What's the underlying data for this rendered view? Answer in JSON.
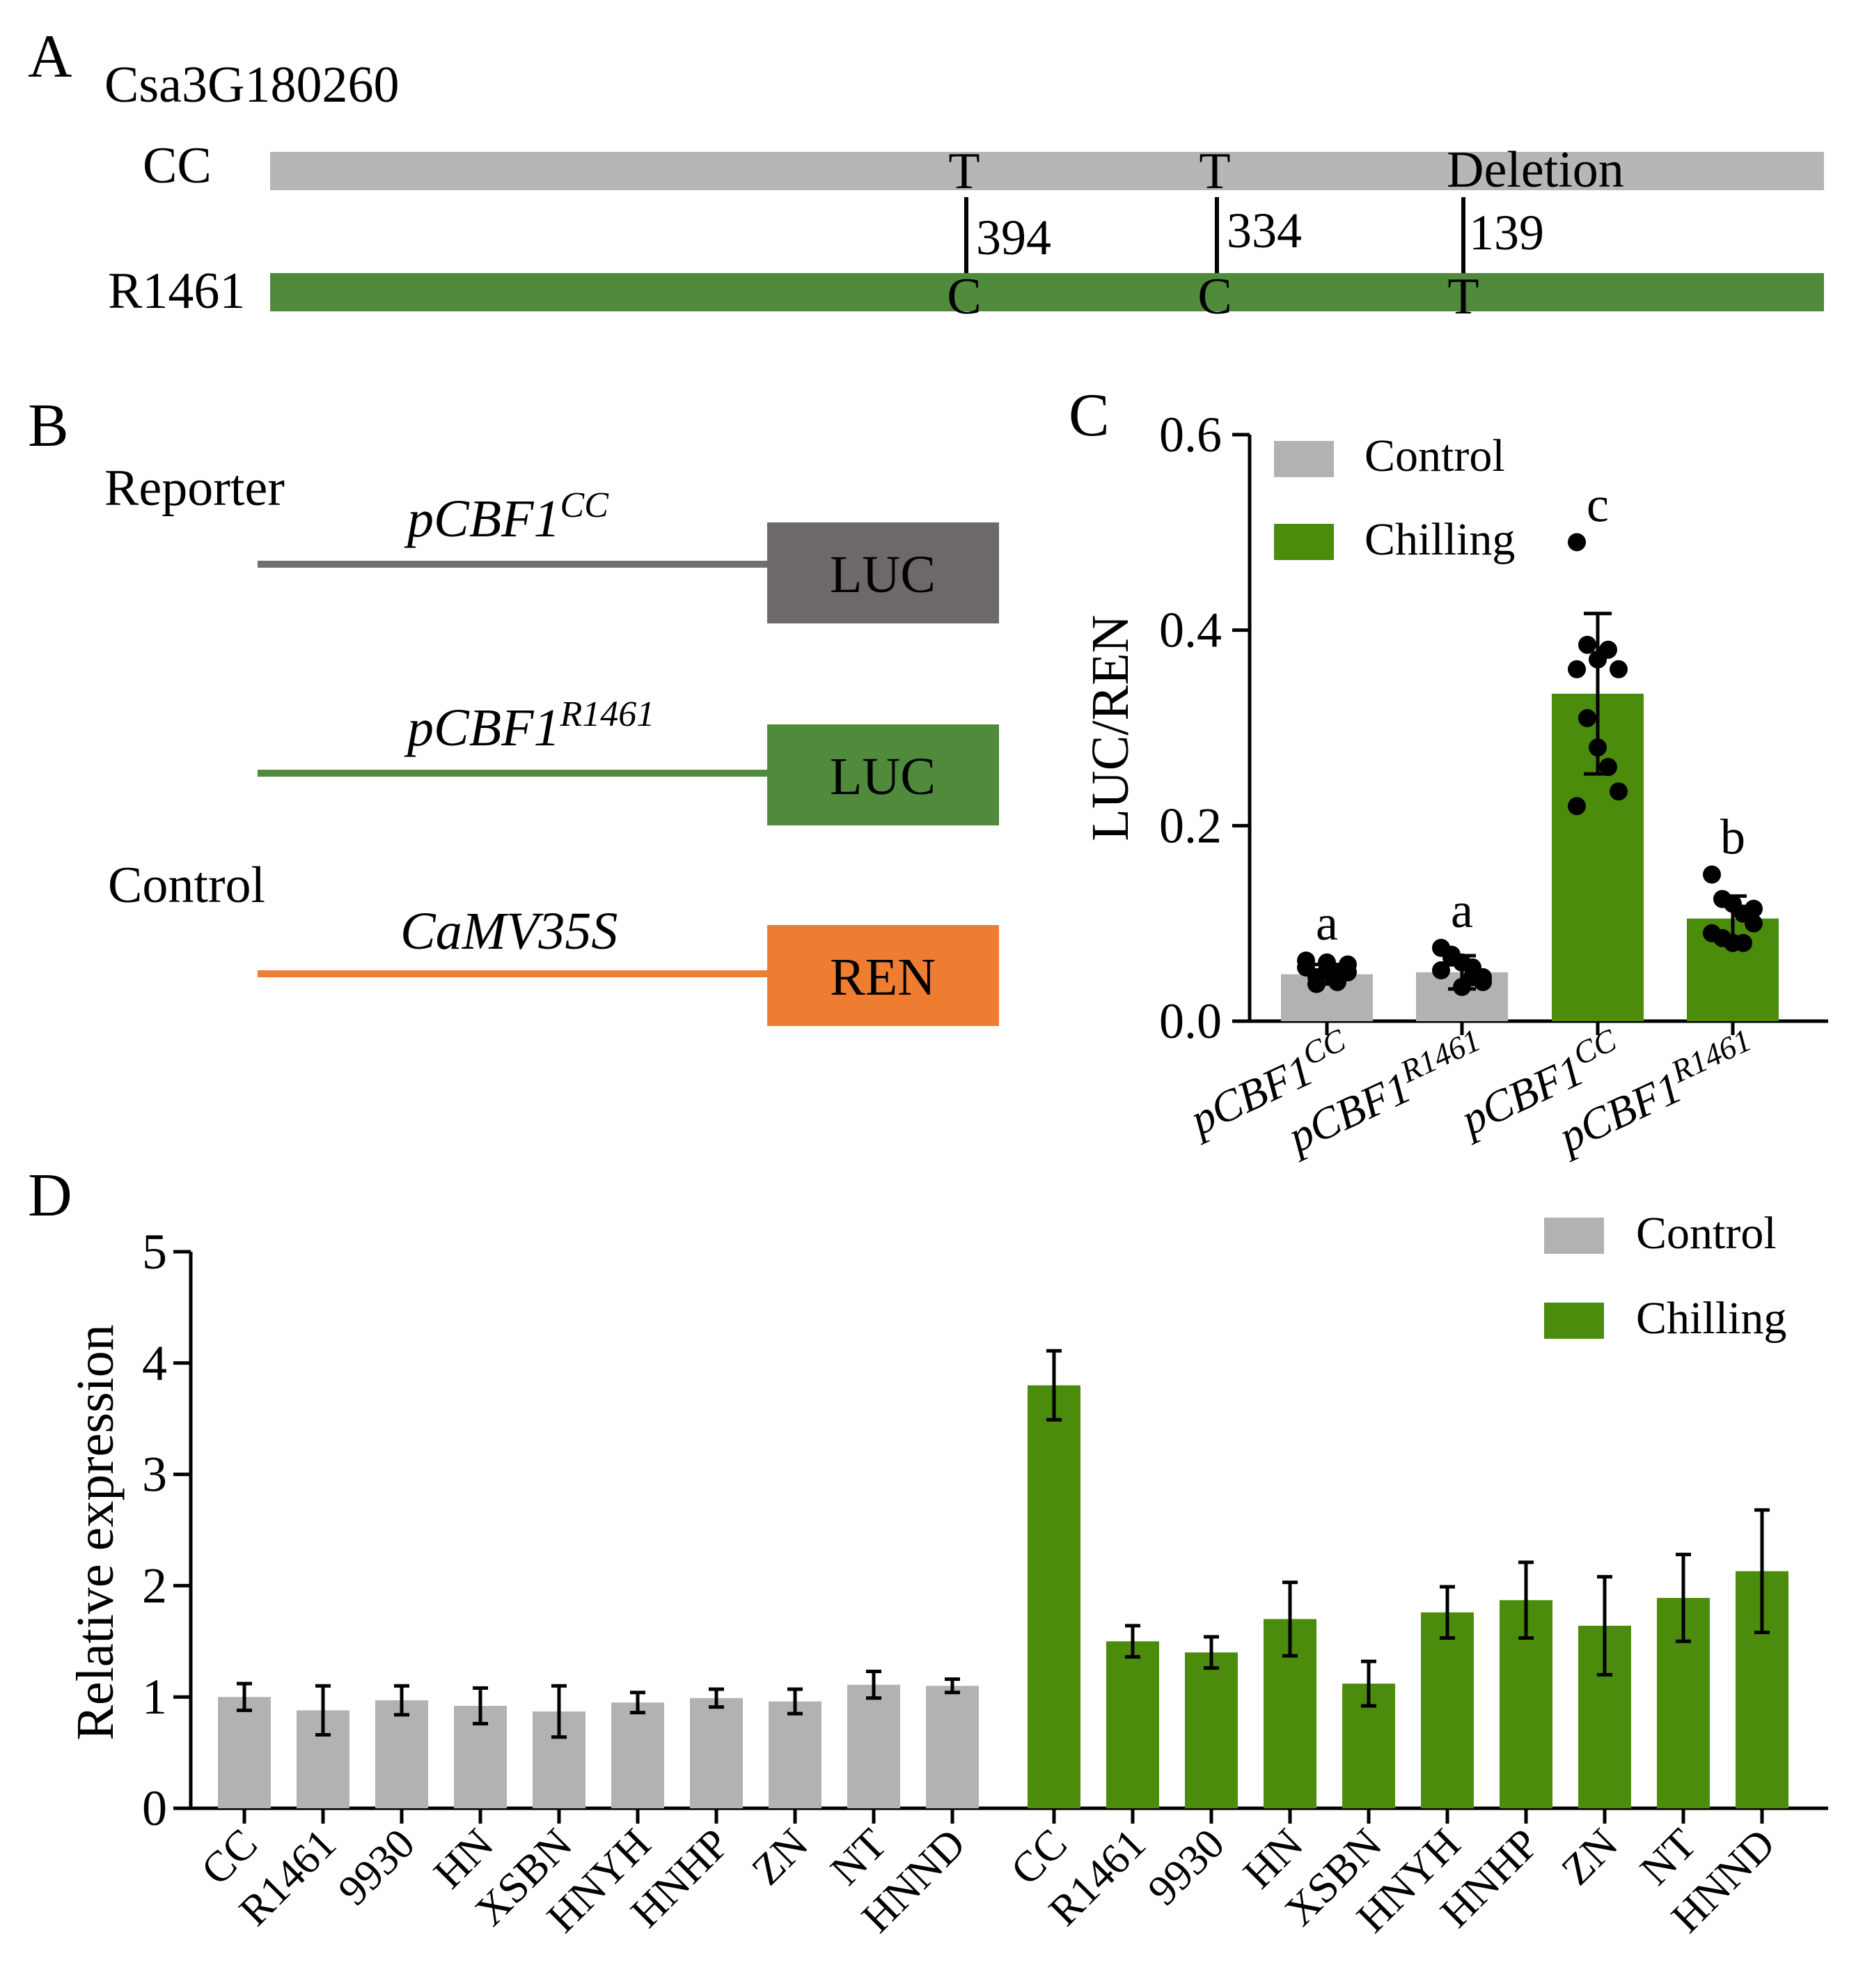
{
  "colors": {
    "control_gray": "#b2b2b2",
    "chilling_green": "#4c8c0c",
    "cc_line": "#b7b5b5",
    "r1461_line": "#4f8b3b",
    "reporter_dark": "#6d6869",
    "reporter_line_gray": "#6f6f6f",
    "ren_orange": "#ee7d32",
    "axis": "#000000"
  },
  "panel_a": {
    "label": "A",
    "gene": "Csa3G180260",
    "rows": [
      {
        "name": "CC",
        "bases": [
          "T",
          "T",
          "Deletion"
        ]
      },
      {
        "name": "R1461",
        "bases": [
          "C",
          "C",
          "T"
        ]
      }
    ],
    "positions": [
      "394",
      "334",
      "139"
    ]
  },
  "panel_b": {
    "label": "B",
    "reporter_label": "Reporter",
    "control_label": "Control",
    "constructs": [
      {
        "promoter_base": "pCBF1",
        "promoter_sup": "CC",
        "box": "LUC",
        "color": "#6d6869",
        "line": "#6f6f6f"
      },
      {
        "promoter_base": "pCBF1",
        "promoter_sup": "R1461",
        "box": "LUC",
        "color": "#4f8b3b",
        "line": "#4f8b3b"
      },
      {
        "promoter_base": "CaMV35S",
        "promoter_sup": "",
        "box": "REN",
        "color": "#ee7d32",
        "line": "#ee7d32"
      }
    ]
  },
  "chart_data": [
    {
      "panel": "C",
      "type": "bar",
      "ylabel": "LUC/REN",
      "xlabel": "",
      "ylim": [
        0,
        0.6
      ],
      "yticks": [
        "0.0",
        "0.2",
        "0.4",
        "0.6"
      ],
      "legend": [
        "Control",
        "Chilling"
      ],
      "legend_position": "top-left",
      "categories": [
        {
          "base": "pCBF1",
          "sup": "CC"
        },
        {
          "base": "pCBF1",
          "sup": "R1461"
        },
        {
          "base": "pCBF1",
          "sup": "CC"
        },
        {
          "base": "pCBF1",
          "sup": "R1461"
        }
      ],
      "bars": [
        {
          "group": "Control",
          "value": 0.048,
          "err": 0.01,
          "letter": "a",
          "points": [
            0.055,
            0.045,
            0.06,
            0.04,
            0.05,
            0.062,
            0.038,
            0.052,
            0.047,
            0.058
          ]
        },
        {
          "group": "Control",
          "value": 0.05,
          "err": 0.017,
          "letter": "a",
          "points": [
            0.075,
            0.068,
            0.06,
            0.045,
            0.04,
            0.052,
            0.065,
            0.035,
            0.055,
            0.045
          ]
        },
        {
          "group": "Chilling",
          "value": 0.335,
          "err": 0.082,
          "letter": "c",
          "points": [
            0.49,
            0.385,
            0.37,
            0.38,
            0.36,
            0.36,
            0.31,
            0.28,
            0.26,
            0.235,
            0.22
          ]
        },
        {
          "group": "Chilling",
          "value": 0.105,
          "err": 0.023,
          "letter": "b",
          "points": [
            0.15,
            0.125,
            0.12,
            0.11,
            0.1,
            0.09,
            0.085,
            0.08,
            0.08,
            0.115
          ]
        }
      ]
    },
    {
      "panel": "D",
      "type": "bar",
      "ylabel": "Relative expression",
      "xlabel": "",
      "ylim": [
        0,
        5
      ],
      "yticks": [
        "0",
        "1",
        "2",
        "3",
        "4",
        "5"
      ],
      "legend": [
        "Control",
        "Chilling"
      ],
      "legend_position": "top-right",
      "categories": [
        "CC",
        "R1461",
        "9930",
        "HN",
        "XSBN",
        "HNYH",
        "HNHP",
        "ZN",
        "NT",
        "HNND"
      ],
      "series": [
        {
          "name": "Control",
          "values": [
            1.0,
            0.88,
            0.97,
            0.92,
            0.87,
            0.95,
            0.99,
            0.96,
            1.11,
            1.1
          ],
          "errors": [
            0.12,
            0.22,
            0.13,
            0.16,
            0.23,
            0.09,
            0.08,
            0.11,
            0.12,
            0.06
          ]
        },
        {
          "name": "Chilling",
          "values": [
            3.8,
            1.5,
            1.4,
            1.7,
            1.12,
            1.76,
            1.87,
            1.64,
            1.89,
            2.13
          ],
          "errors": [
            0.31,
            0.14,
            0.14,
            0.33,
            0.2,
            0.23,
            0.34,
            0.44,
            0.39,
            0.55
          ]
        }
      ]
    }
  ]
}
